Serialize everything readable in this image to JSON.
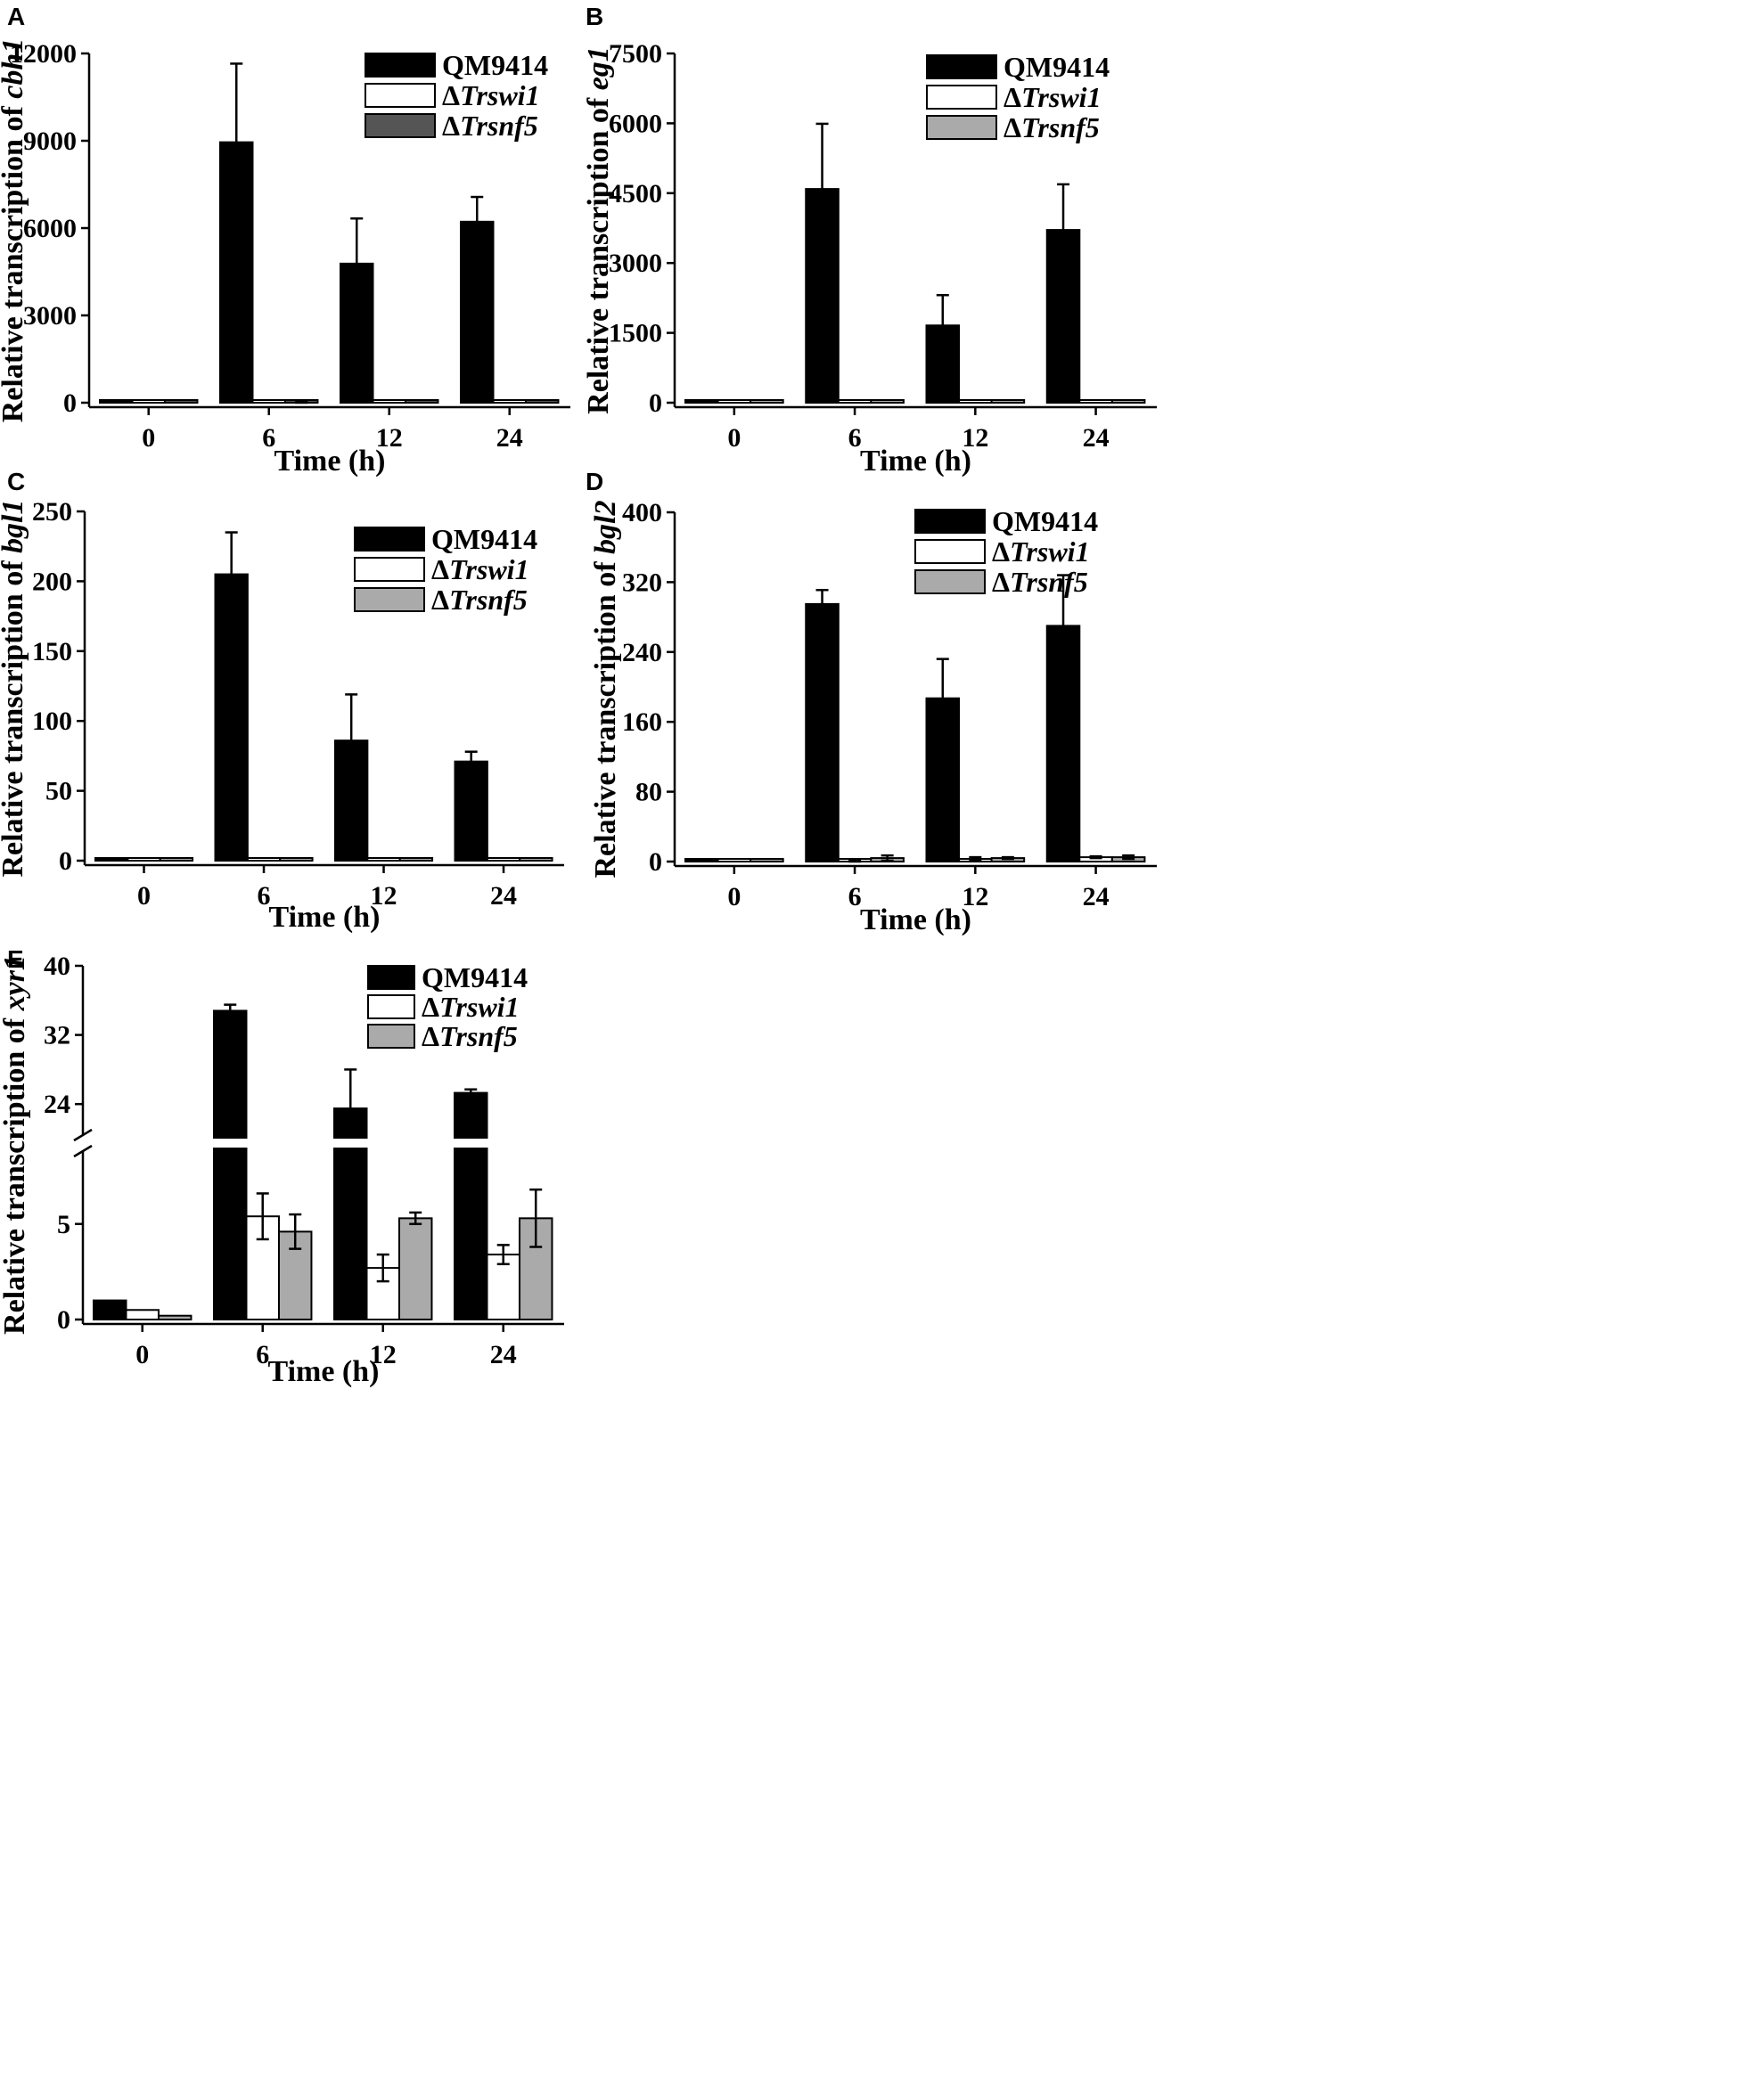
{
  "legend_labels": {
    "qm": "QM9414",
    "swi_prefix": "Δ",
    "swi_name": "Trswi1",
    "snf_prefix": "Δ",
    "snf_name": "Trsnf5"
  },
  "colors": {
    "QM9414": "#000000",
    "Trswi1": "#ffffff",
    "Trsnf5_A": "#555555",
    "Trsnf5": "#aaaaaa"
  },
  "chart_data": [
    {
      "panel": "A",
      "type": "bar",
      "ylabel_prefix": "Relative transcription of ",
      "ylabel_gene": "cbh1",
      "xlabel": "Time (h)",
      "categories": [
        "0",
        "6",
        "12",
        "24"
      ],
      "yticks": [
        0,
        3000,
        6000,
        9000,
        12000
      ],
      "ylim": [
        0,
        12000
      ],
      "legend_position": "top-right",
      "series": [
        {
          "name": "QM9414",
          "values": [
            1,
            8950,
            4780,
            6220
          ],
          "errors": [
            0,
            2700,
            1550,
            850
          ]
        },
        {
          "name": "ΔTrswi1",
          "values": [
            2,
            3,
            2,
            3
          ],
          "errors": [
            0,
            0,
            0,
            0
          ]
        },
        {
          "name": "ΔTrsnf5",
          "values": [
            2,
            30,
            2,
            3
          ],
          "errors": [
            0,
            30,
            0,
            0
          ]
        }
      ]
    },
    {
      "panel": "B",
      "type": "bar",
      "ylabel_prefix": "Relative transcription of ",
      "ylabel_gene": "eg1",
      "xlabel": "Time (h)",
      "categories": [
        "0",
        "6",
        "12",
        "24"
      ],
      "yticks": [
        0,
        1500,
        3000,
        4500,
        6000,
        7500
      ],
      "ylim": [
        0,
        7500
      ],
      "legend_position": "top-right",
      "series": [
        {
          "name": "QM9414",
          "values": [
            1,
            4590,
            1660,
            3710
          ],
          "errors": [
            0,
            1400,
            650,
            980
          ]
        },
        {
          "name": "ΔTrswi1",
          "values": [
            2,
            2,
            2,
            2
          ],
          "errors": [
            0,
            0,
            0,
            0
          ]
        },
        {
          "name": "ΔTrsnf5",
          "values": [
            2,
            2,
            2,
            2
          ],
          "errors": [
            0,
            0,
            0,
            0
          ]
        }
      ]
    },
    {
      "panel": "C",
      "type": "bar",
      "ylabel_prefix": "Relative transcription of ",
      "ylabel_gene": "bgl1",
      "xlabel": "Time (h)",
      "categories": [
        "0",
        "6",
        "12",
        "24"
      ],
      "yticks": [
        0,
        50,
        100,
        150,
        200,
        250
      ],
      "ylim": [
        0,
        250
      ],
      "legend_position": "top-right",
      "series": [
        {
          "name": "QM9414",
          "values": [
            1,
            205,
            86,
            71
          ],
          "errors": [
            0,
            30,
            33,
            7
          ]
        },
        {
          "name": "ΔTrswi1",
          "values": [
            0.5,
            1,
            1.5,
            1
          ],
          "errors": [
            0,
            0,
            0,
            0
          ]
        },
        {
          "name": "ΔTrsnf5",
          "values": [
            0.3,
            1,
            1,
            1
          ],
          "errors": [
            0,
            0,
            0,
            0
          ]
        }
      ]
    },
    {
      "panel": "D",
      "type": "bar",
      "ylabel_prefix": "Relative transcription of ",
      "ylabel_gene": "bgl2",
      "xlabel": "Time (h)",
      "categories": [
        "0",
        "6",
        "12",
        "24"
      ],
      "yticks": [
        0,
        80,
        160,
        240,
        320,
        400
      ],
      "ylim": [
        0,
        400
      ],
      "legend_position": "top-right",
      "series": [
        {
          "name": "QM9414",
          "values": [
            1,
            295,
            187,
            270
          ],
          "errors": [
            0,
            16,
            45,
            58
          ]
        },
        {
          "name": "ΔTrswi1",
          "values": [
            0.5,
            1,
            3,
            5
          ],
          "errors": [
            0,
            1,
            2,
            1
          ]
        },
        {
          "name": "ΔTrsnf5",
          "values": [
            0.3,
            4,
            4,
            5
          ],
          "errors": [
            0,
            3,
            1,
            2
          ]
        }
      ]
    },
    {
      "panel": "E",
      "type": "bar",
      "ylabel_prefix": "Relative transcription of ",
      "ylabel_gene": "xyr1",
      "xlabel": "Time (h)",
      "categories": [
        "0",
        "6",
        "12",
        "24"
      ],
      "yticks": [
        0,
        5,
        24,
        32,
        40
      ],
      "axis_break": [
        9,
        20
      ],
      "legend_position": "top-right",
      "series": [
        {
          "name": "QM9414",
          "values": [
            1,
            34.8,
            23.5,
            25.3
          ],
          "errors": [
            0,
            0.7,
            4.5,
            0.4
          ]
        },
        {
          "name": "ΔTrswi1",
          "values": [
            0.5,
            5.4,
            2.7,
            3.4
          ],
          "errors": [
            0,
            1.2,
            0.7,
            0.5
          ]
        },
        {
          "name": "ΔTrsnf5",
          "values": [
            0.2,
            4.6,
            5.3,
            5.3
          ],
          "errors": [
            0,
            0.9,
            0.3,
            1.5
          ]
        }
      ]
    }
  ]
}
